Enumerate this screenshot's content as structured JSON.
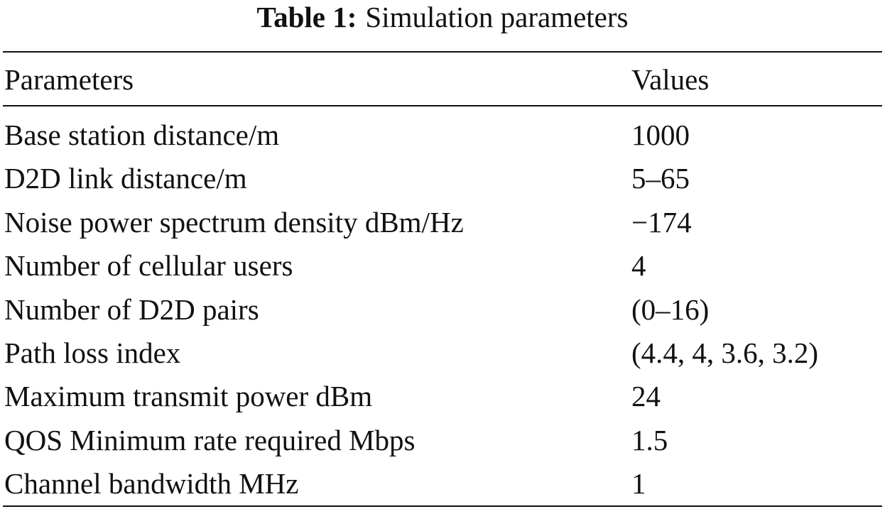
{
  "caption": {
    "label": "Table 1:",
    "title": "Simulation parameters"
  },
  "table": {
    "headers": [
      "Parameters",
      "Values"
    ],
    "rows": [
      {
        "parameter": "Base station distance/m",
        "value": "1000"
      },
      {
        "parameter": "D2D link distance/m",
        "value": "5–65"
      },
      {
        "parameter": "Noise power spectrum density dBm/Hz",
        "value": "−174"
      },
      {
        "parameter": "Number of cellular users",
        "value": "4"
      },
      {
        "parameter": "Number of D2D pairs",
        "value": "(0–16)"
      },
      {
        "parameter": "Path loss index",
        "value": "(4.4, 4, 3.6, 3.2)"
      },
      {
        "parameter": "Maximum transmit power dBm",
        "value": "24"
      },
      {
        "parameter": "QOS Minimum rate required Mbps",
        "value": "1.5"
      },
      {
        "parameter": "Channel bandwidth MHz",
        "value": "1"
      }
    ]
  }
}
